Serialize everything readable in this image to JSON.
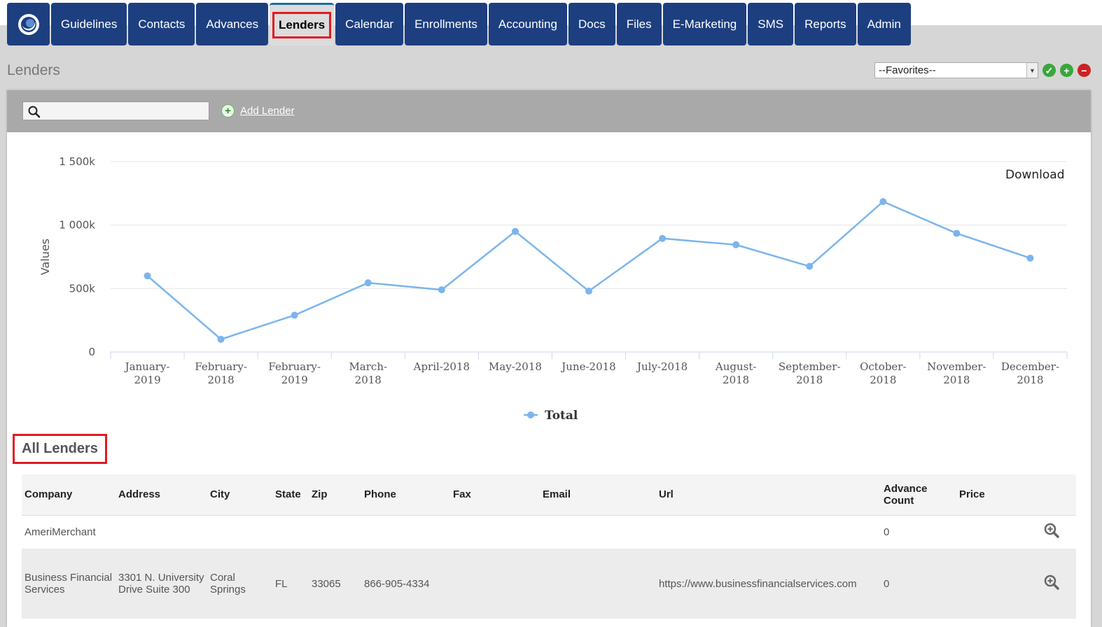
{
  "nav": {
    "tabs": [
      {
        "label": "Guidelines"
      },
      {
        "label": "Contacts"
      },
      {
        "label": "Advances"
      },
      {
        "label": "Lenders",
        "active": true
      },
      {
        "label": "Calendar"
      },
      {
        "label": "Enrollments"
      },
      {
        "label": "Accounting"
      },
      {
        "label": "Docs"
      },
      {
        "label": "Files"
      },
      {
        "label": "E-Marketing"
      },
      {
        "label": "SMS"
      },
      {
        "label": "Reports"
      },
      {
        "label": "Admin"
      }
    ]
  },
  "page": {
    "title": "Lenders",
    "favorites_value": "--Favorites--"
  },
  "toolbar": {
    "search_placeholder": "",
    "add_lender_label": "Add Lender"
  },
  "chart_data": {
    "type": "line",
    "title": "",
    "xlabel": "",
    "ylabel": "Values",
    "ylim": [
      0,
      1500000
    ],
    "yticks": [
      "0",
      "500k",
      "1 000k",
      "1 500k"
    ],
    "categories": [
      "January-2019",
      "February-2018",
      "February-2019",
      "March-2018",
      "April-2018",
      "May-2018",
      "June-2018",
      "July-2018",
      "August-2018",
      "September-2018",
      "October-2018",
      "November-2018",
      "December-2018"
    ],
    "series": [
      {
        "name": "Total",
        "values": [
          600000,
          100000,
          290000,
          545000,
          490000,
          950000,
          480000,
          895000,
          845000,
          675000,
          1185000,
          935000,
          740000
        ]
      }
    ],
    "grid": true,
    "legend": "bottom-center",
    "color": "#7cb5ec",
    "download_label": "Download"
  },
  "lenders": {
    "section_title": "All Lenders",
    "columns": [
      "Company",
      "Address",
      "City",
      "State",
      "Zip",
      "Phone",
      "Fax",
      "Email",
      "Url",
      "Advance Count",
      "Price"
    ],
    "rows": [
      {
        "company": "AmeriMerchant",
        "address": "",
        "city": "",
        "state": "",
        "zip": "",
        "phone": "",
        "fax": "",
        "email": "",
        "url": "",
        "advance_count": "0",
        "price": ""
      },
      {
        "company": "Business Financial Services",
        "address": "3301 N. University Drive Suite 300",
        "city": "Coral Springs",
        "state": "FL",
        "zip": "33065",
        "phone": "866-905-4334",
        "fax": "",
        "email": "",
        "url": "https://www.businessfinancialservices.com",
        "advance_count": "0",
        "price": ""
      }
    ]
  }
}
